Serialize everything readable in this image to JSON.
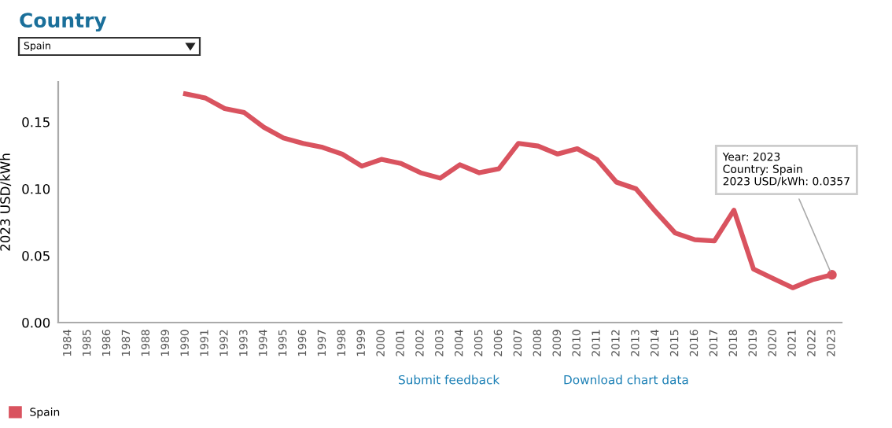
{
  "chart_data": {
    "type": "line",
    "title": "Country",
    "ylabel": "2023 USD/kWh",
    "categories": [
      "1984",
      "1985",
      "1986",
      "1987",
      "1988",
      "1989",
      "1990",
      "1991",
      "1992",
      "1993",
      "1994",
      "1995",
      "1996",
      "1997",
      "1998",
      "1999",
      "2000",
      "2001",
      "2002",
      "2003",
      "2004",
      "2005",
      "2006",
      "2007",
      "2008",
      "2009",
      "2010",
      "2011",
      "2012",
      "2013",
      "2014",
      "2015",
      "2016",
      "2017",
      "2018",
      "2019",
      "2020",
      "2021",
      "2022",
      "2023"
    ],
    "series": [
      {
        "name": "Spain",
        "color": "#d9535f",
        "values": [
          null,
          null,
          null,
          null,
          null,
          null,
          0.171,
          0.168,
          0.16,
          0.157,
          0.146,
          0.138,
          0.134,
          0.131,
          0.126,
          0.117,
          0.122,
          0.119,
          0.112,
          0.108,
          0.118,
          0.112,
          0.115,
          0.134,
          0.132,
          0.126,
          0.13,
          0.122,
          0.105,
          0.1,
          0.083,
          0.067,
          0.062,
          0.061,
          0.084,
          0.04,
          0.033,
          0.026,
          0.032,
          0.0357
        ]
      }
    ],
    "ylim": [
      0,
      0.18
    ],
    "yticks": [
      {
        "value": 0,
        "label": "0.00"
      },
      {
        "value": 0.05,
        "label": "0.05"
      },
      {
        "value": 0.1,
        "label": "0.10"
      },
      {
        "value": 0.15,
        "label": "0.15"
      }
    ],
    "grid": false,
    "legend": "bottom left",
    "marker": "none",
    "line_style": "solid",
    "annotations": [
      "Spain",
      "Submit feedback",
      "Download chart data",
      {
        "text": "Year: 2023\nCountry: Spain\n2023 USD/kWh: 0.0357",
        "x": "2023",
        "y": 0.0357
      }
    ]
  }
}
